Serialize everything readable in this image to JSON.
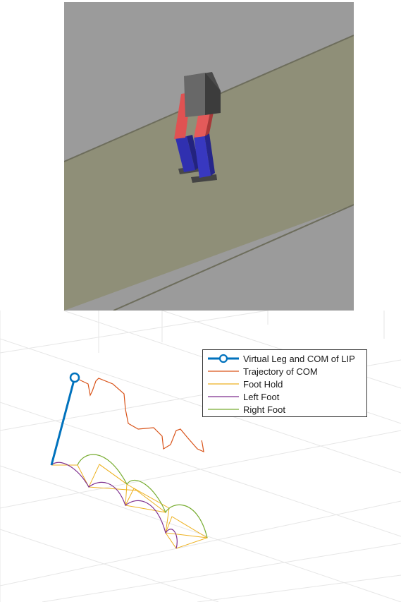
{
  "simulation": {
    "colors": {
      "background": "#9b9b9b",
      "walkway": "#8f8f78",
      "torso": "#5e5e5e",
      "thigh": "#e05050",
      "shank": "#3b3bb8",
      "foot": "#4a4a4a"
    }
  },
  "plot": {
    "legend": {
      "items": [
        {
          "label": "Virtual Leg and COM of LIP",
          "color": "#0072bd",
          "style": "line-circle"
        },
        {
          "label": "Trajectory of COM",
          "color": "#d95319",
          "style": "line"
        },
        {
          "label": "Foot Hold",
          "color": "#edb120",
          "style": "line"
        },
        {
          "label": "Left Foot",
          "color": "#7e2f8e",
          "style": "line"
        },
        {
          "label": "Right Foot",
          "color": "#77ac30",
          "style": "line"
        }
      ]
    },
    "grid_color": "#e6e6e6"
  }
}
